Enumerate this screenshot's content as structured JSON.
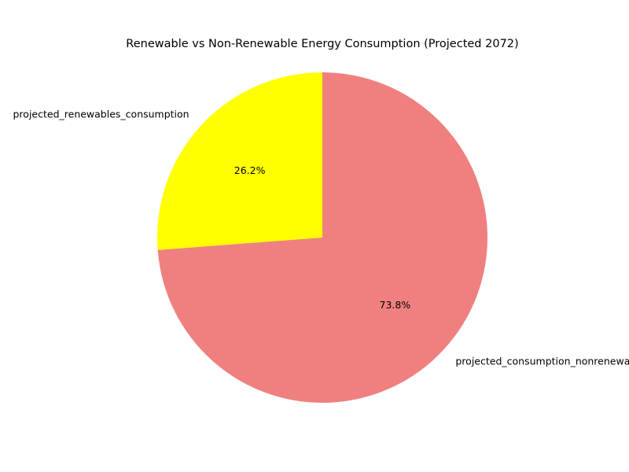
{
  "chart_data": {
    "type": "pie",
    "title": "Renewable vs Non-Renewable Energy Consumption (Projected 2072)",
    "start_angle_degrees": 90,
    "direction": "counterclockwise",
    "slices": [
      {
        "label": "projected_renewables_consumption",
        "value": 26.2,
        "pct_label": "26.2%",
        "color": "#ffff00"
      },
      {
        "label": "projected_consumption_nonrenewables",
        "value": 73.8,
        "pct_label": "73.8%",
        "color": "#f08080"
      }
    ]
  }
}
